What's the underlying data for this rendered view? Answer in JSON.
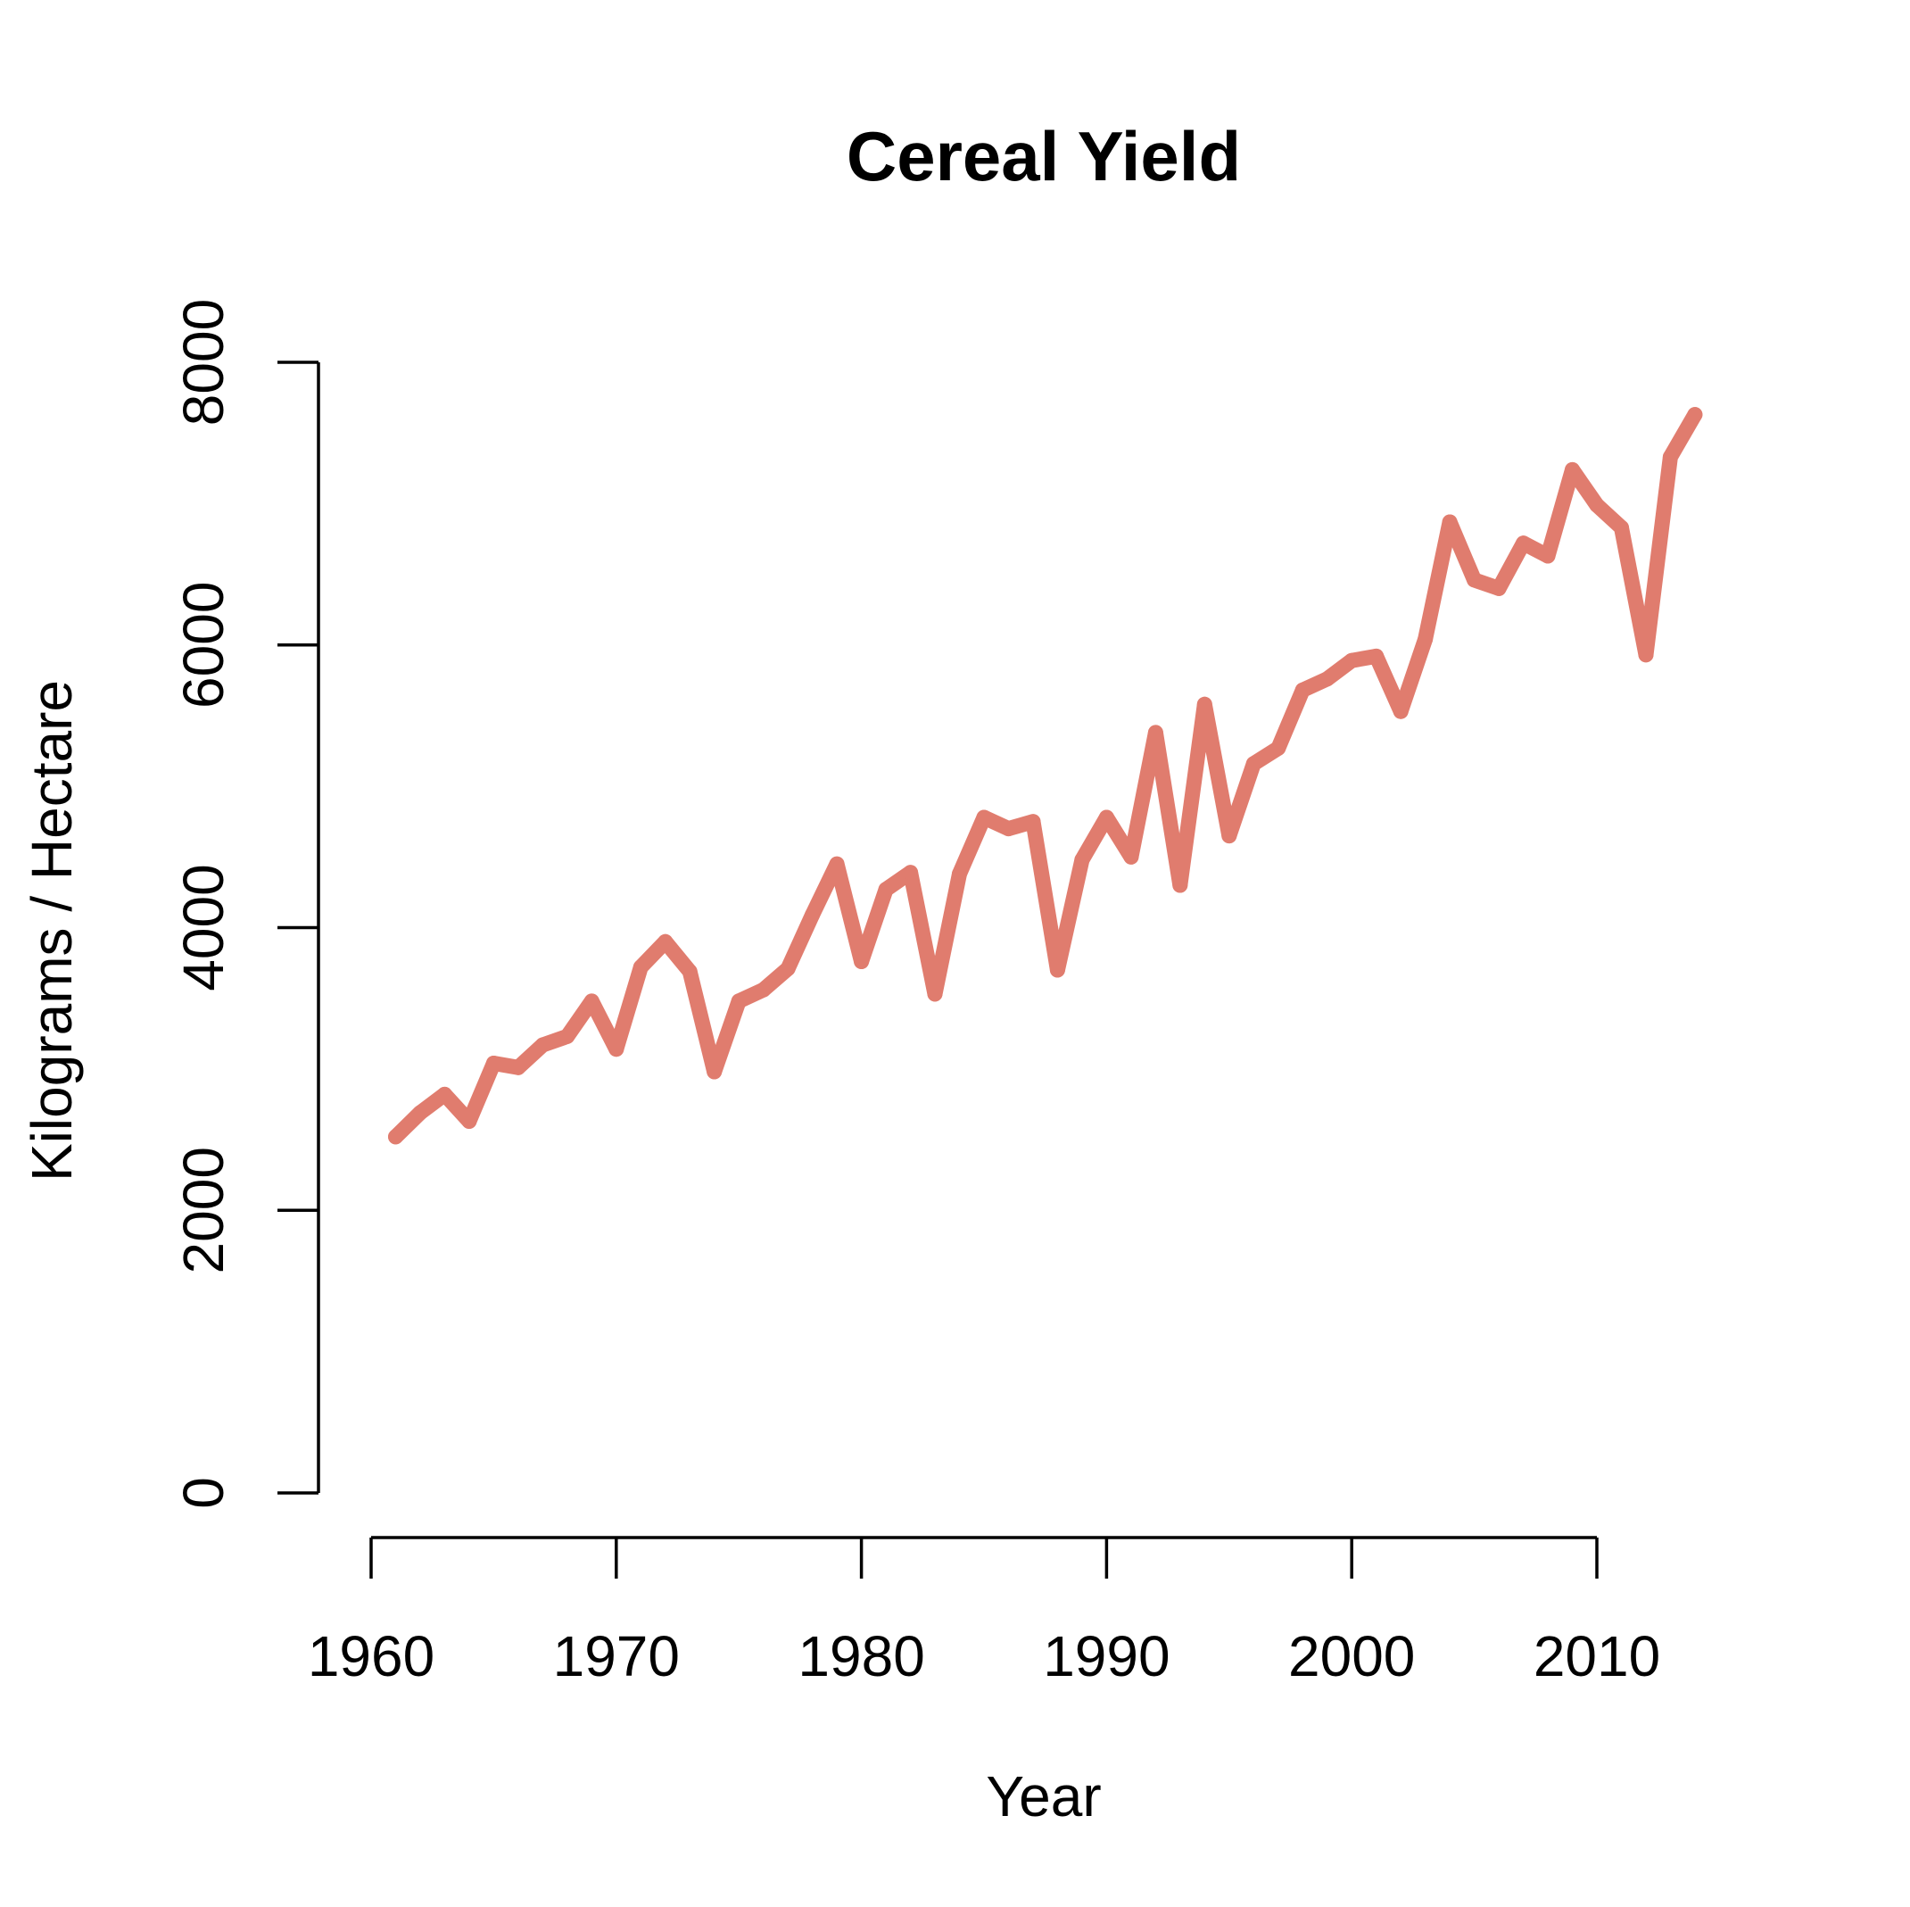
{
  "chart_data": {
    "type": "line",
    "title": "Cereal Yield",
    "xlabel": "Year",
    "ylabel": "Kilograms / Hectare",
    "xlim": [
      1960,
      2010
    ],
    "ylim": [
      0,
      8000
    ],
    "x_ticks": [
      1960,
      1970,
      1980,
      1990,
      2000,
      2010
    ],
    "y_ticks": [
      0,
      2000,
      4000,
      6000,
      8000
    ],
    "grid": false,
    "line_color": "#E07C6E",
    "x": [
      1961,
      1962,
      1963,
      1964,
      1965,
      1966,
      1967,
      1968,
      1969,
      1970,
      1971,
      1972,
      1973,
      1974,
      1975,
      1976,
      1977,
      1978,
      1979,
      1980,
      1981,
      1982,
      1983,
      1984,
      1985,
      1986,
      1987,
      1988,
      1989,
      1990,
      1991,
      1992,
      1993,
      1994,
      1995,
      1996,
      1997,
      1998,
      1999,
      2000,
      2001,
      2002,
      2003,
      2004,
      2005,
      2006,
      2007,
      2008,
      2009,
      2010,
      2011,
      2012,
      2013,
      2014
    ],
    "values": [
      2520,
      2690,
      2820,
      2630,
      3040,
      3010,
      3170,
      3230,
      3480,
      3140,
      3720,
      3900,
      3690,
      2980,
      3480,
      3560,
      3710,
      4090,
      4450,
      3760,
      4270,
      4390,
      3530,
      4380,
      4780,
      4700,
      4750,
      3700,
      4480,
      4780,
      4500,
      5380,
      4300,
      5580,
      4650,
      5160,
      5270,
      5680,
      5760,
      5890,
      5920,
      5530,
      6040,
      6870,
      6460,
      6400,
      6720,
      6630,
      7240,
      6990,
      6830,
      5930,
      7330,
      7630
    ]
  }
}
